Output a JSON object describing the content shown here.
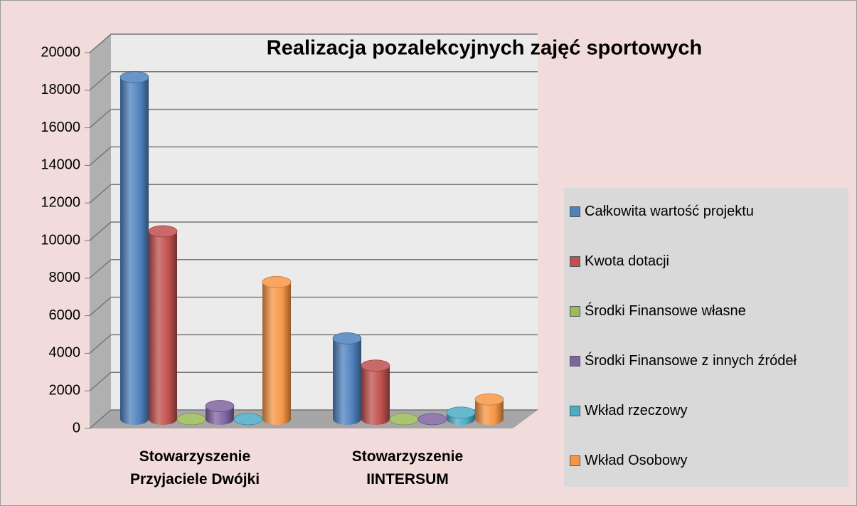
{
  "chart_data": {
    "type": "bar3d",
    "title": "Realizacja pozalekcyjnych zajęć sportowych",
    "categories": [
      "Stowarzyszenie Przyjaciele Dwójki",
      "Stowarzyszenie IINTERSUM"
    ],
    "series": [
      {
        "name": "Całkowita wartość projektu",
        "color": "#4f81bd",
        "values": [
          18200,
          4300
        ]
      },
      {
        "name": "Kwota dotacji",
        "color": "#c0504d",
        "values": [
          10000,
          2850
        ]
      },
      {
        "name": "Środki  Finansowe własne",
        "color": "#9bbb59",
        "values": [
          0,
          0
        ]
      },
      {
        "name": "Środki Finansowe z innych źródeł",
        "color": "#8064a2",
        "values": [
          700,
          0
        ]
      },
      {
        "name": "Wkład rzeczowy",
        "color": "#4bacc6",
        "values": [
          0,
          350
        ]
      },
      {
        "name": "Wkład Osobowy",
        "color": "#f79646",
        "values": [
          7300,
          1050
        ]
      }
    ],
    "ylim": [
      0,
      20000
    ],
    "yticks": [
      0,
      2000,
      4000,
      6000,
      8000,
      10000,
      12000,
      14000,
      16000,
      18000,
      20000
    ],
    "grid": true,
    "legend": "right"
  }
}
